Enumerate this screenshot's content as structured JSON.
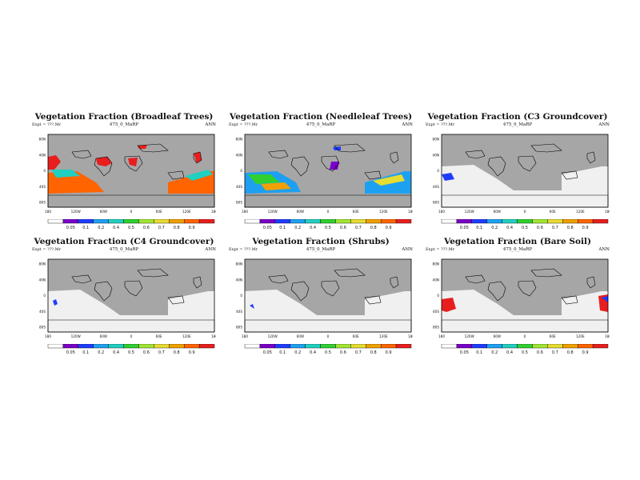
{
  "colors": {
    "ocean": "#a6a6a6",
    "scale": [
      "#ffffff",
      "#7a00c8",
      "#1e3cff",
      "#1ea0f0",
      "#20d0c0",
      "#30d030",
      "#a0e632",
      "#e6dc32",
      "#f0a000",
      "#ff6400",
      "#e81e1e"
    ]
  },
  "legend": {
    "labels": [
      "0.05",
      "0.1",
      "0.2",
      "0.4",
      "0.5",
      "0.6",
      "0.7",
      "0.8",
      "0.9"
    ]
  },
  "axes": {
    "lat_labels": [
      "80N",
      "40N",
      "0",
      "40S",
      "80S"
    ],
    "lon_labels": [
      "180",
      "120W",
      "60W",
      "0",
      "60E",
      "120E",
      "180"
    ]
  },
  "panels": [
    {
      "title": "Vegetation Fraction (Broadleaf Trees)",
      "subtitle": "475_0_MaRP",
      "left": "Expt = ???.Mr",
      "right": "ANN",
      "variant": "broadleaf"
    },
    {
      "title": "Vegetation Fraction (Needleleaf Trees)",
      "subtitle": "475_0_MaRP",
      "left": "Expt = ???.Mr",
      "right": "ANN",
      "variant": "needleleaf"
    },
    {
      "title": "Vegetation Fraction (C3 Groundcover)",
      "subtitle": "475_0_MaRP",
      "left": "Expt = ???.Mr",
      "right": "ANN",
      "variant": "c3"
    },
    {
      "title": "Vegetation Fraction (C4 Groundcover)",
      "subtitle": "475_0_MaRP",
      "left": "Expt = ???.Mr",
      "right": "ANN",
      "variant": "c4"
    },
    {
      "title": "Vegetation Fraction (Shrubs)",
      "subtitle": "475_0_MaRP",
      "left": "Expt = ???.Mr",
      "right": "ANN",
      "variant": "shrubs"
    },
    {
      "title": "Vegetation Fraction (Bare Soil)",
      "subtitle": "475_0_MaRP",
      "left": "Expt = ???.Mr",
      "right": "ANN",
      "variant": "baresoil"
    }
  ]
}
